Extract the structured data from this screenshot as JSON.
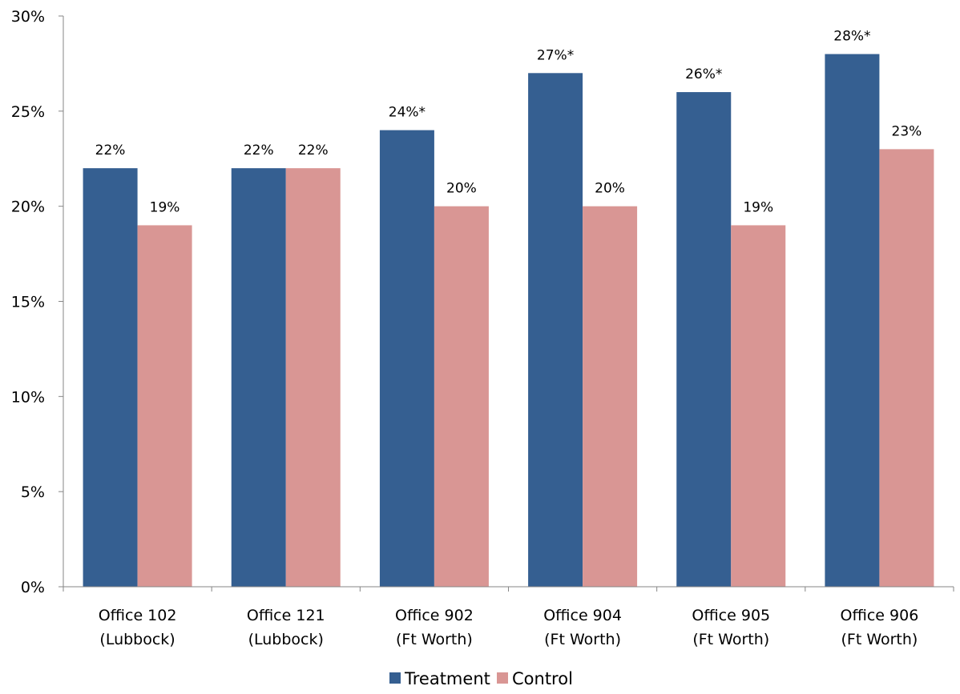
{
  "chart_data": {
    "type": "bar",
    "categories": [
      [
        "Office 102",
        "(Lubbock)"
      ],
      [
        "Office 121",
        "(Lubbock)"
      ],
      [
        "Office 902",
        "(Ft Worth)"
      ],
      [
        "Office 904",
        "(Ft Worth)"
      ],
      [
        "Office 905",
        "(Ft Worth)"
      ],
      [
        "Office 906",
        "(Ft Worth)"
      ]
    ],
    "series": [
      {
        "name": "Treatment",
        "color": "#355F91",
        "values": [
          22,
          22,
          24,
          27,
          26,
          28
        ],
        "labels": [
          "22%",
          "22%",
          "24%*",
          "27%*",
          "26%*",
          "28%*"
        ]
      },
      {
        "name": "Control",
        "color": "#D99694",
        "values": [
          19,
          22,
          20,
          20,
          19,
          23
        ],
        "labels": [
          "19%",
          "22%",
          "20%",
          "20%",
          "19%",
          "23%"
        ]
      }
    ],
    "ylim": [
      0,
      30
    ],
    "yticks": [
      0,
      5,
      10,
      15,
      20,
      25,
      30
    ],
    "ytick_labels": [
      "0%",
      "5%",
      "10%",
      "15%",
      "20%",
      "25%",
      "30%"
    ],
    "title": "",
    "xlabel": "",
    "ylabel": "",
    "grid": false,
    "legend_position": "bottom"
  }
}
